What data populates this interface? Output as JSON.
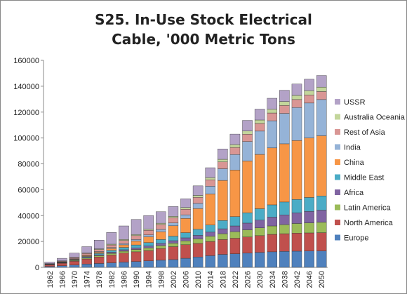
{
  "chart_data": {
    "type": "stacked-bar",
    "title": "S25. In-Use Stock Electrical Cable, '000 Metric Tons",
    "categories": [
      "1962",
      "1966",
      "1970",
      "1974",
      "1978",
      "1982",
      "1986",
      "1990",
      "1994",
      "1998",
      "2002",
      "2006",
      "2010",
      "2014",
      "2018",
      "2022",
      "2026",
      "2030",
      "2034",
      "2038",
      "2042",
      "2046",
      "2050"
    ],
    "ylim": [
      0,
      160000
    ],
    "yticks": [
      0,
      20000,
      40000,
      60000,
      80000,
      100000,
      120000,
      140000,
      160000
    ],
    "legend": "right",
    "series": [
      {
        "name": "Europe",
        "color": "#4f81bd",
        "values": [
          700,
          1200,
          1800,
          2500,
          3000,
          3500,
          4000,
          4500,
          5000,
          5500,
          6000,
          7000,
          8000,
          9000,
          10000,
          10500,
          11000,
          11500,
          12000,
          12300,
          12500,
          12600,
          12700
        ]
      },
      {
        "name": "North America",
        "color": "#c0504d",
        "values": [
          1200,
          2000,
          3000,
          4000,
          5000,
          6000,
          7000,
          7500,
          8000,
          9000,
          10000,
          10500,
          10500,
          11000,
          11500,
          12000,
          12500,
          13000,
          13500,
          13700,
          13900,
          14000,
          14100
        ]
      },
      {
        "name": "Latin America",
        "color": "#9bbb59",
        "values": [
          200,
          300,
          500,
          700,
          1000,
          1300,
          1500,
          1800,
          2000,
          2300,
          2600,
          3000,
          3500,
          4000,
          4500,
          5000,
          5500,
          6000,
          6500,
          7000,
          7500,
          7800,
          8000
        ]
      },
      {
        "name": "Africa",
        "color": "#8064a2",
        "values": [
          100,
          200,
          300,
          500,
          700,
          900,
          1100,
          1300,
          1500,
          1700,
          2000,
          2300,
          2700,
          3200,
          3800,
          4500,
          5200,
          6000,
          6800,
          7500,
          8200,
          8800,
          9400
        ]
      },
      {
        "name": "Middle East",
        "color": "#4bacc6",
        "values": [
          100,
          200,
          400,
          700,
          1000,
          1400,
          1800,
          2200,
          2600,
          3000,
          3500,
          4000,
          4700,
          5500,
          6400,
          7200,
          8000,
          8800,
          9500,
          10000,
          10400,
          10800,
          11000
        ]
      },
      {
        "name": "China",
        "color": "#f79646",
        "values": [
          100,
          200,
          400,
          700,
          1000,
          1500,
          2000,
          3000,
          4500,
          6000,
          8000,
          11000,
          16000,
          24000,
          31000,
          36000,
          40000,
          42000,
          44000,
          45000,
          45500,
          46000,
          46500
        ]
      },
      {
        "name": "India",
        "color": "#95b3d7",
        "values": [
          100,
          200,
          300,
          400,
          500,
          700,
          900,
          1200,
          1500,
          1800,
          2200,
          2800,
          4000,
          6000,
          9000,
          12000,
          15000,
          18000,
          21000,
          23500,
          25500,
          27000,
          28000
        ]
      },
      {
        "name": "Rest of Asia",
        "color": "#d99694",
        "values": [
          300,
          500,
          800,
          1200,
          1600,
          2000,
          2500,
          3000,
          3500,
          3800,
          4000,
          4300,
          4700,
          5000,
          5300,
          5500,
          5700,
          5900,
          6000,
          6100,
          6200,
          6200,
          6200
        ]
      },
      {
        "name": "Australia Oceania",
        "color": "#c3d69b",
        "values": [
          100,
          200,
          300,
          400,
          500,
          600,
          700,
          800,
          900,
          1000,
          1100,
          1300,
          1500,
          1700,
          2000,
          2200,
          2500,
          2700,
          2900,
          3100,
          3200,
          3300,
          3400
        ]
      },
      {
        "name": "USSR",
        "color": "#b3a2c7",
        "values": [
          1100,
          2000,
          3200,
          4900,
          6700,
          9100,
          10500,
          11700,
          10500,
          8900,
          7600,
          6800,
          7400,
          7600,
          8000,
          8100,
          8200,
          8400,
          8500,
          8700,
          8800,
          8900,
          9000
        ]
      }
    ]
  }
}
